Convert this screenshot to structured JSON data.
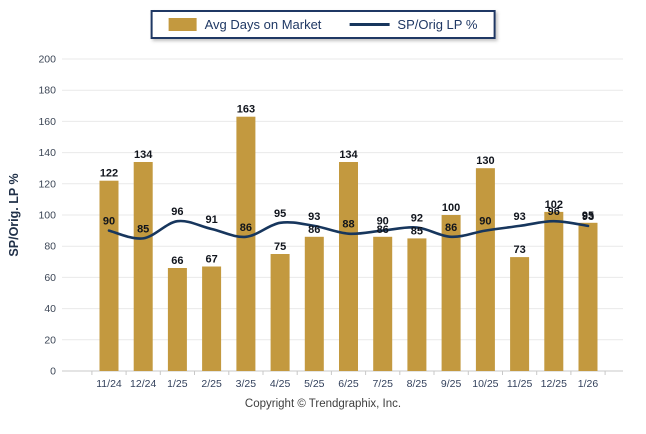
{
  "chart_data": {
    "type": "bar",
    "subtype": "bar+line combo",
    "title": "",
    "categories": [
      "11/24",
      "12/24",
      "1/25",
      "2/25",
      "3/25",
      "4/25",
      "5/25",
      "6/25",
      "7/25",
      "8/25",
      "9/25",
      "10/25",
      "11/25",
      "12/25",
      "1/26"
    ],
    "series": [
      {
        "name": "Avg Days on Market",
        "type": "bar",
        "color": "#C3993F",
        "values": [
          122,
          134,
          66,
          67,
          163,
          75,
          86,
          134,
          86,
          85,
          100,
          130,
          73,
          102,
          95
        ]
      },
      {
        "name": "SP/Orig LP %",
        "type": "line",
        "color": "#17365D",
        "values": [
          90,
          85,
          96,
          91,
          86,
          95,
          93,
          88,
          90,
          92,
          86,
          90,
          93,
          96,
          93
        ]
      }
    ],
    "xlabel": "",
    "ylabel": "SP/Orig. LP %",
    "ylim": [
      0,
      200
    ],
    "yticks": [
      0,
      20,
      40,
      60,
      80,
      100,
      120,
      140,
      160,
      180,
      200
    ],
    "grid": true,
    "legend_position": "top",
    "data_labels": true
  },
  "legend": {
    "bar_label": "Avg Days on Market",
    "line_label": "SP/Orig LP %"
  },
  "footer": {
    "copyright": "Copyright © Trendgraphix, Inc."
  },
  "colors": {
    "bar": "#C3993F",
    "line": "#17365D",
    "legend_border": "#1F3864",
    "gridline": "#E9E9E9",
    "axis": "#C8C8C8",
    "value_label": "#10141c"
  }
}
